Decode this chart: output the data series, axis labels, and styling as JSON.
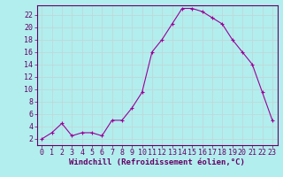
{
  "x": [
    0,
    1,
    2,
    3,
    4,
    5,
    6,
    7,
    8,
    9,
    10,
    11,
    12,
    13,
    14,
    15,
    16,
    17,
    18,
    19,
    20,
    21,
    22,
    23
  ],
  "y": [
    2,
    3,
    4.5,
    2.5,
    3,
    3,
    2.5,
    5,
    5,
    7,
    9.5,
    16,
    18,
    20.5,
    23,
    23,
    22.5,
    21.5,
    20.5,
    18,
    16,
    14,
    9.5,
    5
  ],
  "line_color": "#990099",
  "marker": "+",
  "bg_color": "#b2eeee",
  "grid_color": "#c0d8d8",
  "xlabel": "Windchill (Refroidissement éolien,°C)",
  "ylabel_ticks": [
    2,
    4,
    6,
    8,
    10,
    12,
    14,
    16,
    18,
    20,
    22
  ],
  "xlim": [
    -0.5,
    23.5
  ],
  "ylim": [
    1,
    23.5
  ],
  "xticks": [
    0,
    1,
    2,
    3,
    4,
    5,
    6,
    7,
    8,
    9,
    10,
    11,
    12,
    13,
    14,
    15,
    16,
    17,
    18,
    19,
    20,
    21,
    22,
    23
  ],
  "axis_color": "#660066",
  "tick_label_color": "#660066",
  "xlabel_color": "#660066",
  "xlabel_fontsize": 6.5,
  "tick_fontsize": 6
}
